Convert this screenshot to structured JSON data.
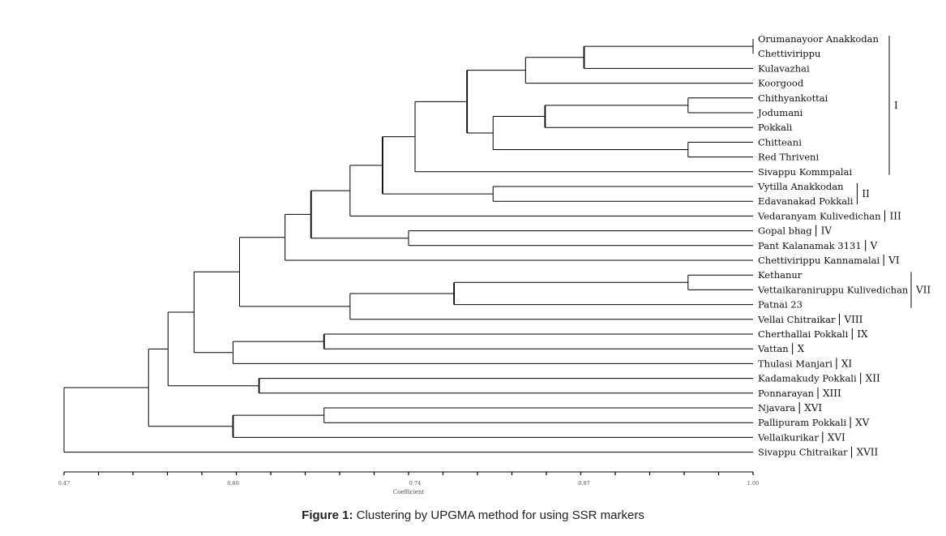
{
  "caption": {
    "prefix": "Figure 1:",
    "text": " Clustering by UPGMA method for using SSR markers"
  },
  "chart_data": {
    "type": "dendrogram",
    "method": "UPGMA",
    "xlabel": "Coefficient",
    "xlim": [
      0.47,
      1.0
    ],
    "tick_labels": [
      "0.47",
      "0.60",
      "0.74",
      "0.87",
      "1.00"
    ],
    "tick_values": [
      0.47,
      0.6,
      0.74,
      0.87,
      1.0
    ],
    "leaves": [
      {
        "name": "Orumanayoor Anakkodan",
        "group": "I"
      },
      {
        "name": "Chettivirippu",
        "group": "I"
      },
      {
        "name": "Kulavazhai",
        "group": "I"
      },
      {
        "name": "Koorgood",
        "group": "I"
      },
      {
        "name": "Chithyankottai",
        "group": "I"
      },
      {
        "name": "Jodumani",
        "group": "I"
      },
      {
        "name": "Pokkali",
        "group": "I"
      },
      {
        "name": "Chitteani",
        "group": "I"
      },
      {
        "name": "Red Thriveni",
        "group": "I"
      },
      {
        "name": "Sivappu Kommpalai",
        "group": "I"
      },
      {
        "name": "Vytilla Anakkodan",
        "group": "II"
      },
      {
        "name": "Edavanakad Pokkali",
        "group": "II"
      },
      {
        "name": "Vedaranyam Kulivedichan",
        "group": "III"
      },
      {
        "name": "Gopal bhag",
        "group": "IV"
      },
      {
        "name": "Pant Kalanamak 3131",
        "group": "V"
      },
      {
        "name": "Chettivirippu Kannamalai",
        "group": "VI"
      },
      {
        "name": "Kethanur",
        "group": "VII"
      },
      {
        "name": "Vettaikaraniruppu Kulivedichan",
        "group": "VII"
      },
      {
        "name": "Patnai 23",
        "group": "VII"
      },
      {
        "name": "Vellai Chitraikar",
        "group": "VIII"
      },
      {
        "name": "Cherthallai Pokkali",
        "group": "IX"
      },
      {
        "name": "Vattan",
        "group": "X"
      },
      {
        "name": "Thulasi Manjari",
        "group": "XI"
      },
      {
        "name": "Kadamakudy Pokkali",
        "group": "XII"
      },
      {
        "name": "Ponnarayan",
        "group": "XIII"
      },
      {
        "name": "Njavara",
        "group": "XVI"
      },
      {
        "name": "Pallipuram Pokkali",
        "group": "XV"
      },
      {
        "name": "Vellaikurikar",
        "group": "XVI"
      },
      {
        "name": "Sivappu Chitraikar",
        "group": "XVII"
      }
    ],
    "groups": [
      {
        "label": "I",
        "from": 0,
        "to": 9
      },
      {
        "label": "II",
        "from": 10,
        "to": 11
      },
      {
        "label": "III",
        "from": 12,
        "to": 12
      },
      {
        "label": "IV",
        "from": 13,
        "to": 13
      },
      {
        "label": "V",
        "from": 14,
        "to": 14
      },
      {
        "label": "VI",
        "from": 15,
        "to": 15
      },
      {
        "label": "VII",
        "from": 16,
        "to": 18
      },
      {
        "label": "VIII",
        "from": 19,
        "to": 19
      },
      {
        "label": "IX",
        "from": 20,
        "to": 20
      },
      {
        "label": "X",
        "from": 21,
        "to": 21
      },
      {
        "label": "XI",
        "from": 22,
        "to": 22
      },
      {
        "label": "XII",
        "from": 23,
        "to": 23
      },
      {
        "label": "XIII",
        "from": 24,
        "to": 24
      },
      {
        "label": "XVI",
        "from": 25,
        "to": 25
      },
      {
        "label": "XV",
        "from": 26,
        "to": 26
      },
      {
        "label": "XVI",
        "from": 27,
        "to": 27
      },
      {
        "label": "XVII",
        "from": 28,
        "to": 28
      }
    ],
    "merges": [
      {
        "id": "m1",
        "a": 0,
        "b": 1,
        "h": 1.0
      },
      {
        "id": "m2",
        "a": "m1",
        "b": 2,
        "h": 0.87
      },
      {
        "id": "m3",
        "a": "m2",
        "b": 3,
        "h": 0.825
      },
      {
        "id": "m4",
        "a": 4,
        "b": 5,
        "h": 0.95
      },
      {
        "id": "m5",
        "a": "m4",
        "b": 6,
        "h": 0.84
      },
      {
        "id": "m6",
        "a": 7,
        "b": 8,
        "h": 0.95
      },
      {
        "id": "m7",
        "a": "m5",
        "b": "m6",
        "h": 0.8
      },
      {
        "id": "m8",
        "a": "m3",
        "b": "m7",
        "h": 0.78
      },
      {
        "id": "m9",
        "a": "m8",
        "b": 9,
        "h": 0.74
      },
      {
        "id": "m10",
        "a": 10,
        "b": 11,
        "h": 0.8
      },
      {
        "id": "m11",
        "a": "m9",
        "b": "m10",
        "h": 0.715
      },
      {
        "id": "m12",
        "a": "m11",
        "b": 12,
        "h": 0.69
      },
      {
        "id": "m13",
        "a": 13,
        "b": 14,
        "h": 0.735
      },
      {
        "id": "m14",
        "a": "m12",
        "b": "m13",
        "h": 0.66
      },
      {
        "id": "m15",
        "a": "m14",
        "b": 15,
        "h": 0.64
      },
      {
        "id": "m16",
        "a": 16,
        "b": 17,
        "h": 0.95
      },
      {
        "id": "m17",
        "a": "m16",
        "b": 18,
        "h": 0.77
      },
      {
        "id": "m18",
        "a": "m17",
        "b": 19,
        "h": 0.69
      },
      {
        "id": "m19",
        "a": "m15",
        "b": "m18",
        "h": 0.605
      },
      {
        "id": "m20",
        "a": 20,
        "b": 21,
        "h": 0.67
      },
      {
        "id": "m21",
        "a": "m20",
        "b": 22,
        "h": 0.6
      },
      {
        "id": "m22",
        "a": "m19",
        "b": "m21",
        "h": 0.57
      },
      {
        "id": "m23",
        "a": 23,
        "b": 24,
        "h": 0.62
      },
      {
        "id": "m24",
        "a": "m22",
        "b": "m23",
        "h": 0.55
      },
      {
        "id": "m25",
        "a": 25,
        "b": 26,
        "h": 0.67
      },
      {
        "id": "m26",
        "a": "m25",
        "b": 27,
        "h": 0.6
      },
      {
        "id": "m27",
        "a": "m24",
        "b": "m26",
        "h": 0.535
      },
      {
        "id": "m28",
        "a": "m27",
        "b": 28,
        "h": 0.47
      }
    ]
  }
}
